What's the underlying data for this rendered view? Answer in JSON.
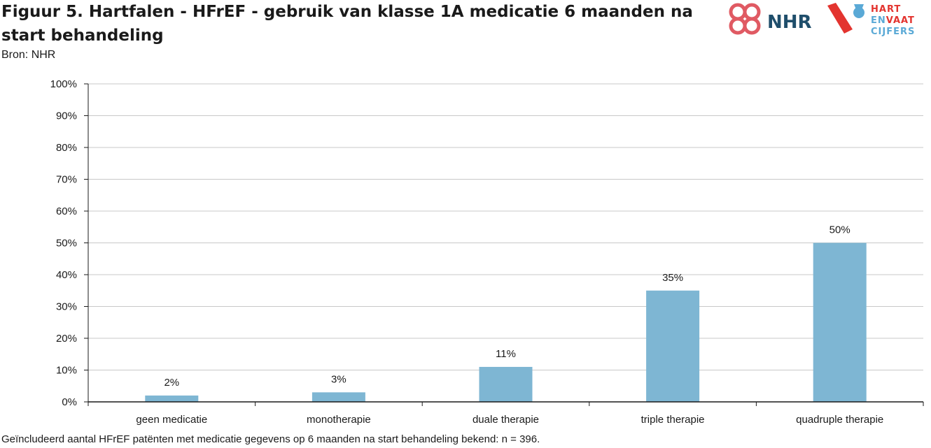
{
  "header": {
    "title": "Figuur 5. Hartfalen - HFrEF - gebruik van klasse 1A medicatie 6 maanden na start behandeling",
    "source": "Bron: NHR"
  },
  "logos": {
    "nhr_text": "NHR",
    "hvc_line1": "HART",
    "hvc_line2_a": "EN",
    "hvc_line2_b": "VAAT",
    "hvc_line3": "CIJFERS",
    "nhr_color": "#e05a63",
    "nhr_text_color": "#1f4e6b",
    "hvc_red": "#e3342f",
    "hvc_blue": "#5aa9d6"
  },
  "chart_data": {
    "type": "bar",
    "categories": [
      "geen medicatie",
      "monotherapie",
      "duale therapie",
      "triple therapie",
      "quadruple therapie"
    ],
    "values": [
      2,
      3,
      11,
      35,
      50
    ],
    "data_labels": [
      "2%",
      "3%",
      "11%",
      "35%",
      "50%"
    ],
    "ylim": [
      0,
      100
    ],
    "yticks": [
      0,
      10,
      20,
      30,
      40,
      50,
      60,
      70,
      80,
      90,
      100
    ],
    "ytick_labels": [
      "0%",
      "10%",
      "20%",
      "30%",
      "40%",
      "50%",
      "60%",
      "70%",
      "80%",
      "90%",
      "100%"
    ],
    "grid": true,
    "legend": "none",
    "bar_color": "#7eb6d3"
  },
  "footnote": "Geïncludeerd aantal HFrEF patënten met medicatie gegevens op 6 maanden na start behandeling bekend: n = 396."
}
